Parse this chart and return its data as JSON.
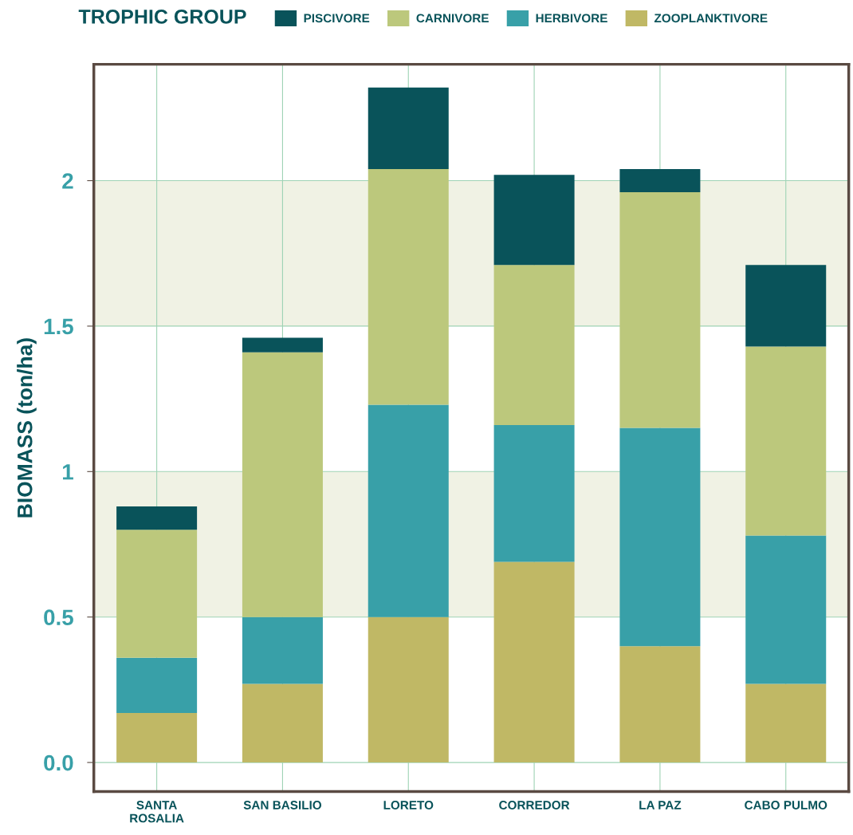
{
  "chart_data": {
    "type": "bar",
    "stacked": true,
    "ylabel": "BIOMASS (ton/ha)",
    "legend_title": "TROPHIC GROUP",
    "legend": "top",
    "categories": [
      "SANTA\nROSALIA",
      "SAN BASILIO",
      "LORETO",
      "CORREDOR",
      "LA PAZ",
      "CABO PULMO"
    ],
    "series": [
      {
        "name": "ZOOPLANKTIVORE",
        "color": "#c0b865",
        "values": [
          0.17,
          0.27,
          0.5,
          0.69,
          0.4,
          0.27
        ]
      },
      {
        "name": "HERBIVORE",
        "color": "#38a0a8",
        "values": [
          0.19,
          0.23,
          0.73,
          0.47,
          0.75,
          0.51
        ]
      },
      {
        "name": "CARNIVORE",
        "color": "#bcc87c",
        "values": [
          0.44,
          0.91,
          0.81,
          0.55,
          0.81,
          0.65
        ]
      },
      {
        "name": "PISCIVORE",
        "color": "#09535a",
        "values": [
          0.08,
          0.05,
          0.28,
          0.31,
          0.08,
          0.28
        ]
      }
    ],
    "ylim": [
      -0.1,
      2.4
    ],
    "yticks": [
      {
        "value": 0,
        "label": "0.0"
      },
      0.5,
      1,
      1.5,
      2
    ],
    "grid": true,
    "bands": [
      {
        "axis": "y",
        "from": 0.5,
        "to": 1,
        "color": "#f0f2e4"
      },
      {
        "axis": "y",
        "from": 1.5,
        "to": 2,
        "color": "#f0f2e4"
      }
    ]
  }
}
